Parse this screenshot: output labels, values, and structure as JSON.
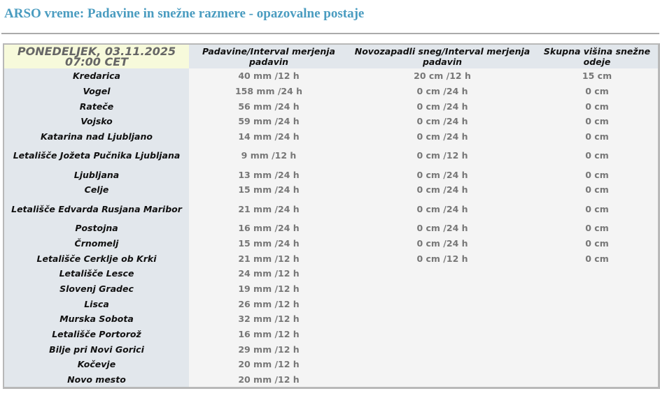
{
  "title": "ARSO vreme: Padavine in snežne razmere - opazovalne postaje",
  "header": {
    "date": "PONEDELJEK, 03.11.2025",
    "time": "07:00 CET",
    "col_precip": "Padavine/Interval merjenja padavin",
    "col_newsnow": "Novozapadli sneg/Interval merjenja padavin",
    "col_snowdepth": "Skupna višina snežne odeje"
  },
  "rows": [
    {
      "station": "Kredarica",
      "precip": "40 mm /12 h",
      "newsnow": "20 cm /12 h",
      "depth": "15 cm"
    },
    {
      "station": "Vogel",
      "precip": "158 mm /24 h",
      "newsnow": "0 cm /24 h",
      "depth": "0 cm"
    },
    {
      "station": "Rateče",
      "precip": "56 mm /24 h",
      "newsnow": "0 cm /24 h",
      "depth": "0 cm"
    },
    {
      "station": "Vojsko",
      "precip": "59 mm /24 h",
      "newsnow": "0 cm /24 h",
      "depth": "0 cm"
    },
    {
      "station": "Katarina nad Ljubljano",
      "precip": "14 mm /24 h",
      "newsnow": "0 cm /24 h",
      "depth": "0 cm"
    },
    {
      "station": "Letališče Jožeta Pučnika Ljubljana",
      "precip": "9 mm /12 h",
      "newsnow": "0 cm /12 h",
      "depth": "0 cm"
    },
    {
      "station": "Ljubljana",
      "precip": "13 mm /24 h",
      "newsnow": "0 cm /24 h",
      "depth": "0 cm"
    },
    {
      "station": "Celje",
      "precip": "15 mm /24 h",
      "newsnow": "0 cm /24 h",
      "depth": "0 cm"
    },
    {
      "station": "Letališče Edvarda Rusjana Maribor",
      "precip": "21 mm /24 h",
      "newsnow": "0 cm /24 h",
      "depth": "0 cm"
    },
    {
      "station": "Postojna",
      "precip": "16 mm /24 h",
      "newsnow": "0 cm /24 h",
      "depth": "0 cm"
    },
    {
      "station": "Črnomelj",
      "precip": "15 mm /24 h",
      "newsnow": "0 cm /24 h",
      "depth": "0 cm"
    },
    {
      "station": "Letališče Cerklje ob Krki",
      "precip": "21 mm /12 h",
      "newsnow": "0 cm /12 h",
      "depth": "0 cm"
    },
    {
      "station": "Letališče Lesce",
      "precip": "24 mm /12 h",
      "newsnow": "",
      "depth": ""
    },
    {
      "station": "Slovenj Gradec",
      "precip": "19 mm /12 h",
      "newsnow": "",
      "depth": ""
    },
    {
      "station": "Lisca",
      "precip": "26 mm /12 h",
      "newsnow": "",
      "depth": ""
    },
    {
      "station": "Murska Sobota",
      "precip": "32 mm /12 h",
      "newsnow": "",
      "depth": ""
    },
    {
      "station": "Letališče Portorož",
      "precip": "16 mm /12 h",
      "newsnow": "",
      "depth": ""
    },
    {
      "station": "Bilje pri Novi Gorici",
      "precip": "29 mm /12 h",
      "newsnow": "",
      "depth": ""
    },
    {
      "station": "Kočevje",
      "precip": "20 mm /12 h",
      "newsnow": "",
      "depth": ""
    },
    {
      "station": "Novo mesto",
      "precip": "20 mm /12 h",
      "newsnow": "",
      "depth": ""
    }
  ]
}
